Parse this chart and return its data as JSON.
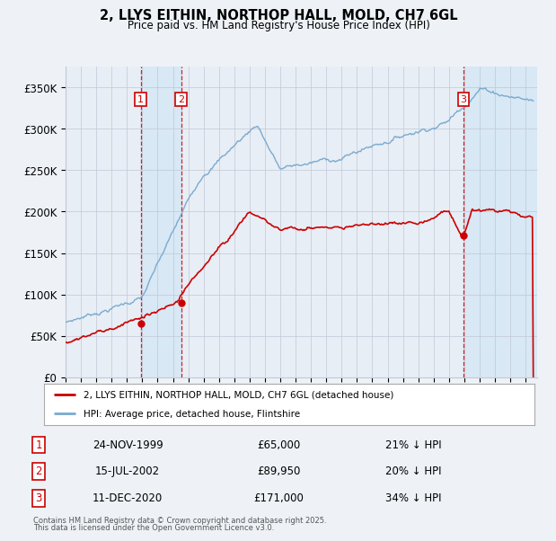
{
  "title": "2, LLYS EITHIN, NORTHOP HALL, MOLD, CH7 6GL",
  "subtitle": "Price paid vs. HM Land Registry's House Price Index (HPI)",
  "legend_line1": "2, LLYS EITHIN, NORTHOP HALL, MOLD, CH7 6GL (detached house)",
  "legend_line2": "HPI: Average price, detached house, Flintshire",
  "footer_line1": "Contains HM Land Registry data © Crown copyright and database right 2025.",
  "footer_line2": "This data is licensed under the Open Government Licence v3.0.",
  "transactions": [
    {
      "num": 1,
      "date": "24-NOV-1999",
      "price": 65000,
      "pct": "21%",
      "dir": "↓"
    },
    {
      "num": 2,
      "date": "15-JUL-2002",
      "price": 89950,
      "pct": "20%",
      "dir": "↓"
    },
    {
      "num": 3,
      "date": "11-DEC-2020",
      "price": 171000,
      "pct": "34%",
      "dir": "↓"
    }
  ],
  "transaction_dates_decimal": [
    1999.9,
    2002.54,
    2020.95
  ],
  "transaction_prices": [
    65000,
    89950,
    171000
  ],
  "ylim": [
    0,
    375000
  ],
  "yticks": [
    0,
    50000,
    100000,
    150000,
    200000,
    250000,
    300000,
    350000
  ],
  "ytick_labels": [
    "£0",
    "£50K",
    "£100K",
    "£150K",
    "£200K",
    "£250K",
    "£300K",
    "£350K"
  ],
  "xlim_start": 1995.0,
  "xlim_end": 2025.75,
  "background_color": "#eef2f7",
  "plot_bg_color": "#e8eef5",
  "grid_color": "#c0c8d8",
  "red_line_color": "#cc0000",
  "blue_line_color": "#7aaad0",
  "vline_color": "#cc0000",
  "shade_color": "#d8e8f5",
  "transaction_box_color": "#cc0000"
}
